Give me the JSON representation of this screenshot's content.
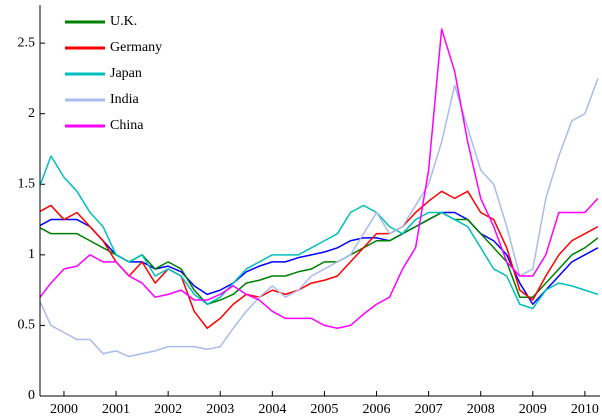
{
  "chart_data": {
    "type": "line",
    "x": [
      1999.5,
      1999.75,
      2000,
      2000.25,
      2000.5,
      2000.75,
      2001,
      2001.25,
      2001.5,
      2001.75,
      2002,
      2002.25,
      2002.5,
      2002.75,
      2003,
      2003.25,
      2003.5,
      2003.75,
      2004,
      2004.25,
      2004.5,
      2004.75,
      2005,
      2005.25,
      2005.5,
      2005.75,
      2006,
      2006.25,
      2006.5,
      2006.75,
      2007,
      2007.25,
      2007.5,
      2007.75,
      2008,
      2008.25,
      2008.5,
      2008.75,
      2009,
      2009.25,
      2009.5,
      2009.75,
      2010,
      2010.25
    ],
    "series": [
      {
        "color": "#0000ff",
        "values": [
          1.2,
          1.25,
          1.25,
          1.25,
          1.2,
          1.1,
          1.0,
          0.95,
          0.95,
          0.9,
          0.92,
          0.88,
          0.78,
          0.72,
          0.75,
          0.8,
          0.88,
          0.92,
          0.95,
          0.95,
          0.98,
          1.0,
          1.02,
          1.05,
          1.1,
          1.12,
          1.12,
          1.1,
          1.15,
          1.2,
          1.25,
          1.3,
          1.3,
          1.25,
          1.15,
          1.1,
          1.0,
          0.8,
          0.65,
          0.75,
          0.85,
          0.95,
          1.0,
          1.05
        ]
      },
      {
        "name": "U.K.",
        "color": "#008000",
        "values": [
          1.2,
          1.15,
          1.15,
          1.15,
          1.1,
          1.05,
          1.0,
          0.95,
          1.0,
          0.9,
          0.95,
          0.9,
          0.75,
          0.65,
          0.68,
          0.72,
          0.8,
          0.82,
          0.85,
          0.85,
          0.88,
          0.9,
          0.95,
          0.95,
          1.0,
          1.05,
          1.1,
          1.1,
          1.15,
          1.2,
          1.25,
          1.3,
          1.25,
          1.25,
          1.15,
          1.05,
          0.95,
          0.7,
          0.7,
          0.8,
          0.9,
          1.0,
          1.05,
          1.12
        ]
      },
      {
        "name": "Germany",
        "color": "#ff0000",
        "values": [
          1.3,
          1.35,
          1.25,
          1.3,
          1.2,
          1.1,
          0.95,
          0.85,
          0.95,
          0.8,
          0.9,
          0.85,
          0.6,
          0.48,
          0.55,
          0.65,
          0.72,
          0.7,
          0.75,
          0.72,
          0.75,
          0.8,
          0.82,
          0.85,
          0.95,
          1.05,
          1.15,
          1.15,
          1.2,
          1.3,
          1.38,
          1.45,
          1.4,
          1.45,
          1.3,
          1.25,
          1.05,
          0.75,
          0.68,
          0.85,
          1.0,
          1.1,
          1.15,
          1.2
        ]
      },
      {
        "name": "Japan",
        "color": "#00bfbf",
        "values": [
          1.45,
          1.7,
          1.55,
          1.45,
          1.3,
          1.2,
          1.0,
          0.95,
          1.0,
          0.85,
          0.9,
          0.85,
          0.72,
          0.65,
          0.7,
          0.8,
          0.9,
          0.95,
          1.0,
          1.0,
          1.0,
          1.05,
          1.1,
          1.15,
          1.3,
          1.35,
          1.3,
          1.2,
          1.15,
          1.25,
          1.3,
          1.3,
          1.25,
          1.2,
          1.05,
          0.9,
          0.85,
          0.65,
          0.62,
          0.75,
          0.8,
          0.78,
          0.75,
          0.72
        ]
      },
      {
        "name": "India",
        "color": "#aabbee",
        "values": [
          0.7,
          0.5,
          0.45,
          0.4,
          0.4,
          0.3,
          0.32,
          0.28,
          0.3,
          0.32,
          0.35,
          0.35,
          0.35,
          0.33,
          0.35,
          0.48,
          0.6,
          0.7,
          0.78,
          0.7,
          0.75,
          0.85,
          0.9,
          0.95,
          1.0,
          1.15,
          1.3,
          1.15,
          1.2,
          1.35,
          1.5,
          1.8,
          2.2,
          1.9,
          1.6,
          1.5,
          1.2,
          0.85,
          0.9,
          1.4,
          1.7,
          1.95,
          2.0,
          2.25
        ]
      },
      {
        "name": "China",
        "color": "#ff00ff",
        "values": [
          0.68,
          0.8,
          0.9,
          0.92,
          1.0,
          0.95,
          0.95,
          0.85,
          0.8,
          0.7,
          0.72,
          0.75,
          0.68,
          0.68,
          0.72,
          0.78,
          0.72,
          0.68,
          0.6,
          0.55,
          0.55,
          0.55,
          0.5,
          0.48,
          0.5,
          0.58,
          0.65,
          0.7,
          0.9,
          1.05,
          1.6,
          2.6,
          2.3,
          1.8,
          1.4,
          1.2,
          0.95,
          0.85,
          0.85,
          1.0,
          1.3,
          1.3,
          1.3,
          1.4
        ]
      }
    ],
    "xlim": [
      1999.54,
      2010.29
    ],
    "xticks": [
      2000,
      2001,
      2002,
      2003,
      2004,
      2005,
      2006,
      2007,
      2008,
      2009,
      2010
    ],
    "ylim": [
      0,
      2.77
    ],
    "yticks": [
      0,
      0.5,
      1,
      1.5,
      2,
      2.5
    ],
    "legend": "upper left",
    "grid": false
  }
}
